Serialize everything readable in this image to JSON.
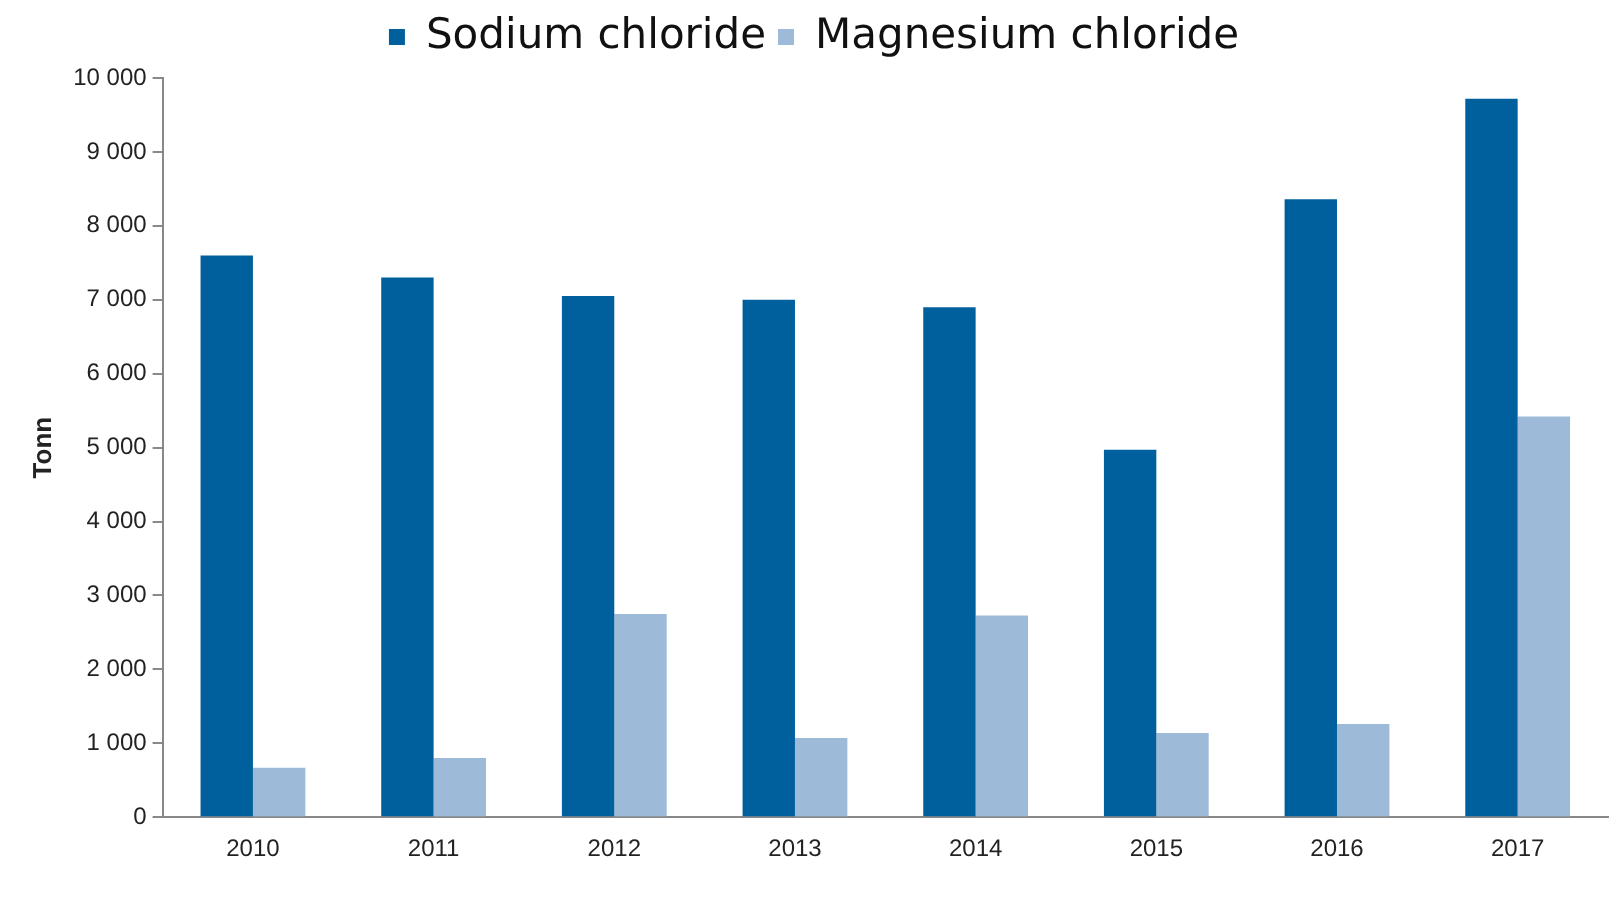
{
  "chart_data": {
    "type": "bar",
    "ylabel": "Tonn",
    "categories": [
      "2010",
      "2011",
      "2012",
      "2013",
      "2014",
      "2015",
      "2016",
      "2017"
    ],
    "series": [
      {
        "name": "Sodium chloride",
        "color": "#00609e",
        "values": [
          7600,
          7300,
          7050,
          7000,
          6900,
          4970,
          8360,
          9720
        ]
      },
      {
        "name": "Magnesium chloride",
        "color": "#9dbad9",
        "values": [
          670,
          800,
          2750,
          1070,
          2730,
          1140,
          1260,
          5420
        ]
      }
    ],
    "ylim": [
      0,
      10000
    ],
    "yticks": [
      0,
      {
        "value": 1000,
        "label": "1 000"
      },
      {
        "value": 2000,
        "label": "2 000"
      },
      {
        "value": 3000,
        "label": "3 000"
      },
      {
        "value": 4000,
        "label": "4 000"
      },
      {
        "value": 5000,
        "label": "5 000"
      },
      {
        "value": 6000,
        "label": "6 000"
      },
      {
        "value": 7000,
        "label": "7 000"
      },
      {
        "value": 8000,
        "label": "8 000"
      },
      {
        "value": 9000,
        "label": "9 000"
      },
      {
        "value": 10000,
        "label": "10 000"
      }
    ],
    "grid": false,
    "legend": "top"
  }
}
